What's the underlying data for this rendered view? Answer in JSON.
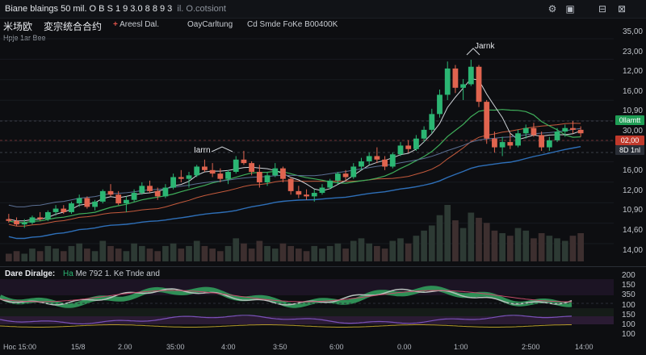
{
  "window": {
    "title": "Biane blaings 50 mil. O B S 1 9 3.0 8 8 9 3",
    "subtitle": "il. O.cotsiont",
    "controls": [
      "settings-icon",
      "layout-icon",
      "minimize-icon",
      "close-icon"
    ]
  },
  "toolbar": {
    "symbol": "米场欧",
    "name": "変宗统合合约",
    "indicator1_plus": "+",
    "indicator1": "Areesl Dal.",
    "indicator2": "OayCarltung",
    "indicator3": "Cd Smde FoKe B00400K"
  },
  "subbar": {
    "text": "Hpje  1ar  Bee"
  },
  "annotations": [
    {
      "label": "Iarrn"
    },
    {
      "label": "Jarnk"
    }
  ],
  "price_axis": [
    "35,00",
    "23,00",
    "12,00",
    "16,00",
    "10,90",
    "30,00",
    "12,00",
    "16,00",
    "12,00",
    "10,90",
    "14,60",
    "14,00"
  ],
  "price_tags": [
    {
      "text": "0llamtt",
      "color": "#1f9d55"
    },
    {
      "text": "02,00",
      "color": "#c0392b"
    },
    {
      "text": "8D 1nl",
      "color": "#2a2e36"
    }
  ],
  "lower_panel": {
    "title": "Dare Diralge:",
    "info_prefix": "Ha",
    "info": "Me 792 1. Ke Tnde and",
    "axis": [
      "200",
      "150",
      "350",
      "100",
      "150",
      "100",
      "100"
    ]
  },
  "time_axis": [
    "Hoc 15:00",
    "15/8",
    "2.00",
    "35:00",
    "4:00",
    "3:50",
    "6:00",
    "0.00",
    "1:00",
    "2:500",
    "14:00"
  ],
  "colors": {
    "background": "#0d0e11",
    "up": "#2bb673",
    "down": "#e0644f",
    "ma_fast": "#cfd3d8",
    "ma_mid": "#3fae5a",
    "ma_slow": "#2e6fb8",
    "ma_red": "#c45a3c"
  },
  "chart_data": {
    "type": "candlestick",
    "candles": [
      [
        14.2,
        14.5,
        14.0,
        14.1
      ],
      [
        14.1,
        14.3,
        13.8,
        13.9
      ],
      [
        13.9,
        14.2,
        13.7,
        14.0
      ],
      [
        14.0,
        14.4,
        13.9,
        14.3
      ],
      [
        14.3,
        14.6,
        14.1,
        14.2
      ],
      [
        14.2,
        14.7,
        14.1,
        14.6
      ],
      [
        14.6,
        15.0,
        14.4,
        14.8
      ],
      [
        14.8,
        15.0,
        14.5,
        14.6
      ],
      [
        14.6,
        15.2,
        14.5,
        15.1
      ],
      [
        15.1,
        15.6,
        14.9,
        15.4
      ],
      [
        15.4,
        15.5,
        14.8,
        14.9
      ],
      [
        14.9,
        15.3,
        14.7,
        15.2
      ],
      [
        15.2,
        15.9,
        15.1,
        15.8
      ],
      [
        15.8,
        16.2,
        15.5,
        15.6
      ],
      [
        15.6,
        15.8,
        15.0,
        15.1
      ],
      [
        15.1,
        15.5,
        14.6,
        15.3
      ],
      [
        15.3,
        15.9,
        15.2,
        15.7
      ],
      [
        15.7,
        16.3,
        15.6,
        16.1
      ],
      [
        16.1,
        16.4,
        15.7,
        15.8
      ],
      [
        15.8,
        16.0,
        15.3,
        15.5
      ],
      [
        15.5,
        16.2,
        15.4,
        16.0
      ],
      [
        16.0,
        16.8,
        15.9,
        16.6
      ],
      [
        16.6,
        17.0,
        16.3,
        16.5
      ],
      [
        16.5,
        16.9,
        16.0,
        16.7
      ],
      [
        16.7,
        17.3,
        16.6,
        17.2
      ],
      [
        17.2,
        17.6,
        16.9,
        17.0
      ],
      [
        17.0,
        17.4,
        16.6,
        16.8
      ],
      [
        16.8,
        17.1,
        16.3,
        16.5
      ],
      [
        16.5,
        17.0,
        16.2,
        16.9
      ],
      [
        16.9,
        17.8,
        16.8,
        17.6
      ],
      [
        17.6,
        18.1,
        17.3,
        17.4
      ],
      [
        17.4,
        17.5,
        16.7,
        16.9
      ],
      [
        16.9,
        17.3,
        16.0,
        16.3
      ],
      [
        16.3,
        16.9,
        16.1,
        16.7
      ],
      [
        16.7,
        17.4,
        16.6,
        17.1
      ],
      [
        17.1,
        17.2,
        16.3,
        16.5
      ],
      [
        16.5,
        16.6,
        15.6,
        15.8
      ],
      [
        15.8,
        16.1,
        15.4,
        15.6
      ],
      [
        15.6,
        15.9,
        15.3,
        15.5
      ],
      [
        15.5,
        15.9,
        15.2,
        15.7
      ],
      [
        15.7,
        16.2,
        15.6,
        16.0
      ],
      [
        16.0,
        16.5,
        15.9,
        16.4
      ],
      [
        16.4,
        16.9,
        16.2,
        16.8
      ],
      [
        16.8,
        17.0,
        16.4,
        16.6
      ],
      [
        16.6,
        17.4,
        16.5,
        17.2
      ],
      [
        17.2,
        17.7,
        17.0,
        17.5
      ],
      [
        17.5,
        18.0,
        17.3,
        17.8
      ],
      [
        17.8,
        18.3,
        17.4,
        17.6
      ],
      [
        17.6,
        17.8,
        17.0,
        17.2
      ],
      [
        17.2,
        18.0,
        17.1,
        17.9
      ],
      [
        17.9,
        18.6,
        17.8,
        18.4
      ],
      [
        18.4,
        18.7,
        18.0,
        18.2
      ],
      [
        18.2,
        19.0,
        18.1,
        18.8
      ],
      [
        18.8,
        19.5,
        18.6,
        19.3
      ],
      [
        19.3,
        20.5,
        19.1,
        20.2
      ],
      [
        20.2,
        21.6,
        20.0,
        21.3
      ],
      [
        21.3,
        23.2,
        21.0,
        22.8
      ],
      [
        22.8,
        23.0,
        21.4,
        21.7
      ],
      [
        21.7,
        22.2,
        21.0,
        21.9
      ],
      [
        21.9,
        23.3,
        21.8,
        22.9
      ],
      [
        22.9,
        23.0,
        20.6,
        20.9
      ],
      [
        20.9,
        21.0,
        18.5,
        18.8
      ],
      [
        18.8,
        19.2,
        18.0,
        18.3
      ],
      [
        18.3,
        18.9,
        17.8,
        18.6
      ],
      [
        18.6,
        19.1,
        18.2,
        18.4
      ],
      [
        18.4,
        19.3,
        18.3,
        19.1
      ],
      [
        19.1,
        19.6,
        18.8,
        19.4
      ],
      [
        19.4,
        19.7,
        18.9,
        19.0
      ],
      [
        19.0,
        19.2,
        18.1,
        18.3
      ],
      [
        18.3,
        18.9,
        18.1,
        18.7
      ],
      [
        18.7,
        19.4,
        18.6,
        19.2
      ],
      [
        19.2,
        19.6,
        18.9,
        19.4
      ],
      [
        19.4,
        19.8,
        19.1,
        19.3
      ],
      [
        19.3,
        19.5,
        18.9,
        19.1
      ]
    ],
    "volume": [
      3,
      4,
      3,
      5,
      4,
      6,
      5,
      4,
      6,
      7,
      5,
      4,
      8,
      6,
      5,
      4,
      7,
      6,
      5,
      4,
      6,
      7,
      5,
      6,
      8,
      6,
      5,
      4,
      6,
      9,
      7,
      5,
      8,
      6,
      5,
      7,
      6,
      5,
      4,
      6,
      5,
      6,
      7,
      5,
      8,
      9,
      7,
      6,
      5,
      8,
      9,
      7,
      10,
      12,
      14,
      18,
      22,
      16,
      13,
      19,
      17,
      15,
      12,
      11,
      10,
      13,
      12,
      9,
      11,
      10,
      9,
      8,
      10,
      11
    ]
  }
}
